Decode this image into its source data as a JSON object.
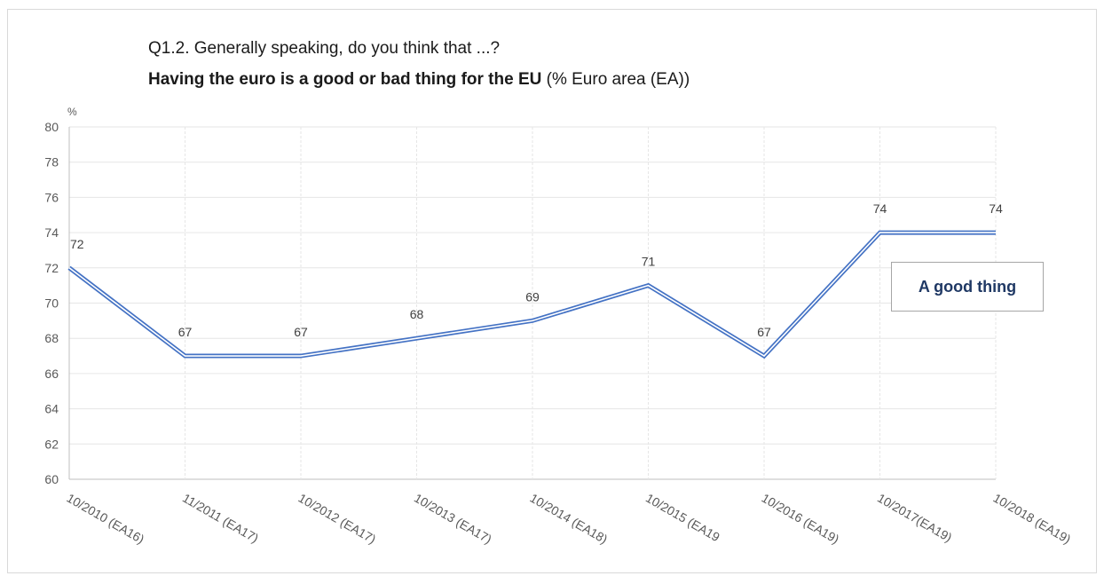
{
  "header": {
    "question": "Q1.2. Generally speaking, do you think that ...?",
    "statement_bold": "Having the euro is a good or bad thing for the EU",
    "statement_suffix": " (% Euro area (EA))"
  },
  "chart_data": {
    "type": "line",
    "title": "Q1.2. Generally speaking, do you think that ...?",
    "subtitle": "Having the euro is a good or bad thing for the EU (% Euro area (EA))",
    "ylabel": "%",
    "xlabel": "",
    "ylim": [
      60,
      80
    ],
    "yticks": [
      60,
      62,
      64,
      66,
      68,
      70,
      72,
      74,
      76,
      78,
      80
    ],
    "grid": true,
    "legend_position": "right",
    "categories": [
      "10/2010 (EA16)",
      "11/2011 (EA17)",
      "10/2012 (EA17)",
      "10/2013 (EA17)",
      "10/2014 (EA18)",
      "10/2015 (EA19",
      "10/2016 (EA19)",
      "10/2017(EA19)",
      "10/2018 (EA19)"
    ],
    "series": [
      {
        "name": "A good thing",
        "values": [
          72,
          67,
          67,
          68,
          69,
          71,
          67,
          74,
          74
        ],
        "color": "#4472c4"
      }
    ]
  }
}
